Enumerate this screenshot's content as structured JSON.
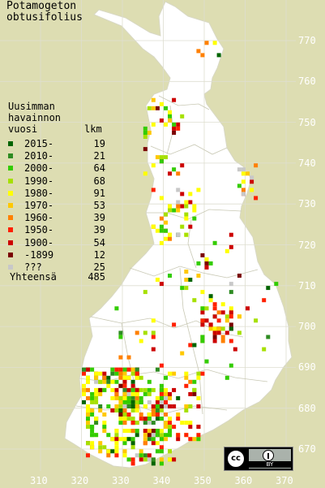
{
  "title": {
    "line1": "Potamogeton",
    "line2": "obtusifolius"
  },
  "legend": {
    "heading_lines": [
      "Uusimman",
      "havainnon",
      "vuosi"
    ],
    "count_header": "lkm",
    "entries": [
      {
        "label": "2015-",
        "count": "19",
        "color": "#006400"
      },
      {
        "label": "2010-",
        "count": "21",
        "color": "#2e8b22"
      },
      {
        "label": "2000-",
        "count": "64",
        "color": "#33cc00"
      },
      {
        "label": "1990-",
        "count": "68",
        "color": "#a6e000"
      },
      {
        "label": "1980-",
        "count": "91",
        "color": "#ffff00"
      },
      {
        "label": "1970-",
        "count": "53",
        "color": "#ffc800"
      },
      {
        "label": "1960-",
        "count": "39",
        "color": "#ff8000"
      },
      {
        "label": "1950-",
        "count": "39",
        "color": "#ff2000"
      },
      {
        "label": "1900-",
        "count": "54",
        "color": "#cc0000"
      },
      {
        "label": "-1899",
        "count": "12",
        "color": "#7a0000"
      },
      {
        "label": "???",
        "count": "25",
        "color": "#c8c8c8"
      }
    ],
    "total_label": "Yhteensä",
    "total_count": "485"
  },
  "axes": {
    "y_ticks": [
      "770",
      "760",
      "750",
      "740",
      "730",
      "720",
      "710",
      "700",
      "690",
      "680",
      "670"
    ],
    "x_ticks": [
      "310",
      "320",
      "330",
      "340",
      "350",
      "360",
      "370"
    ]
  },
  "colors": {
    "background": "#ddddb2",
    "land": "#ffffff",
    "grid": "#d9d9c0",
    "border": "#c0c0a8"
  },
  "license": {
    "badge_icon": "cc-by-badge",
    "cc_text": "cc",
    "by_text": "BY"
  }
}
